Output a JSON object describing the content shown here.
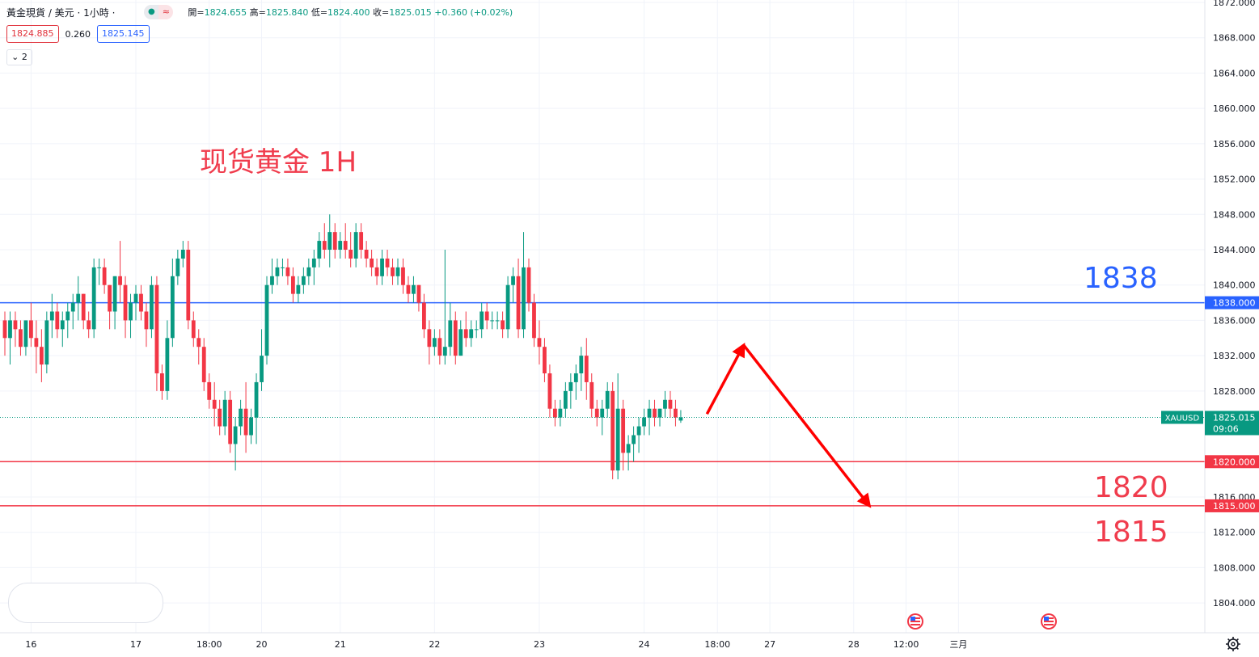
{
  "legend": {
    "symbol_title": "黃金現貨 / 美元 · 1小時 ·",
    "live_icon": "dot-icon",
    "approx_icon": "approx-icon",
    "ohlc": [
      {
        "label": "開=",
        "value": "1824.655"
      },
      {
        "label": "高=",
        "value": "1825.840"
      },
      {
        "label": "低=",
        "value": "1824.400"
      },
      {
        "label": "收=",
        "value": "1825.015"
      },
      {
        "label": "",
        "value": "+0.360 (+0.02%)"
      }
    ],
    "bid": "1824.885",
    "spread": "0.260",
    "ask": "1825.145",
    "indicators_toggle": "2"
  },
  "annotations": {
    "chart_label": "现货黄金 1H",
    "resistance_label": "1838",
    "support1_label": "1820",
    "support2_label": "1815"
  },
  "colors": {
    "up": "#089981",
    "down": "#f23645",
    "resistance": "#2962ff",
    "support": "#f23645",
    "arrow": "#ff0000",
    "annotation_red": "#f03c4d",
    "annotation_blue": "#2962ff"
  },
  "chart_data": {
    "type": "candlestick",
    "symbol": "XAUUSD",
    "timeframe": "1H",
    "y_range": [
      1802.0,
      1872.0
    ],
    "y_ticks": [
      "1872.000",
      "1868.000",
      "1864.000",
      "1860.000",
      "1856.000",
      "1852.000",
      "1848.000",
      "1844.000",
      "1840.000",
      "1836.000",
      "1832.000",
      "1828.000",
      "1816.000",
      "1812.000",
      "1808.000",
      "1804.000"
    ],
    "x_ticks": [
      {
        "label": "16",
        "t": 5
      },
      {
        "label": "17",
        "t": 25
      },
      {
        "label": "18:00",
        "t": 39
      },
      {
        "label": "20",
        "t": 49
      },
      {
        "label": "21",
        "t": 64
      },
      {
        "label": "22",
        "t": 82
      },
      {
        "label": "23",
        "t": 102
      },
      {
        "label": "24",
        "t": 122
      },
      {
        "label": "18:00",
        "t": 136
      },
      {
        "label": "27",
        "t": 146
      },
      {
        "label": "28",
        "t": 162
      },
      {
        "label": "12:00",
        "t": 172
      },
      {
        "label": "三月",
        "t": 182
      }
    ],
    "horizontal_lines": [
      {
        "value": 1838.0,
        "label": "1838.000",
        "color": "#2962ff"
      },
      {
        "value": 1820.0,
        "label": "1820.000",
        "color": "#f23645"
      },
      {
        "value": 1815.0,
        "label": "1815.000",
        "color": "#f23645"
      }
    ],
    "last_price": {
      "value": 1825.015,
      "label": "1825.015",
      "countdown": "09:06",
      "symbol_tag": "XAUUSD"
    },
    "forecast_path": [
      {
        "t": 134,
        "price": 1825.4
      },
      {
        "t": 141,
        "price": 1833.2
      },
      {
        "t": 165,
        "price": 1815.0
      }
    ],
    "ohlc": [
      [
        1836,
        1837,
        1832,
        1834
      ],
      [
        1834,
        1837,
        1831,
        1836
      ],
      [
        1836,
        1837,
        1833,
        1835
      ],
      [
        1835,
        1836,
        1832,
        1833
      ],
      [
        1833,
        1836,
        1832,
        1836
      ],
      [
        1836,
        1838,
        1833,
        1834
      ],
      [
        1834,
        1836,
        1830,
        1833
      ],
      [
        1833,
        1835,
        1829,
        1831
      ],
      [
        1831,
        1837,
        1830,
        1836
      ],
      [
        1836,
        1839,
        1834,
        1837
      ],
      [
        1837,
        1838,
        1834,
        1835
      ],
      [
        1835,
        1837,
        1833,
        1836
      ],
      [
        1836,
        1838,
        1834,
        1837
      ],
      [
        1837,
        1839,
        1835,
        1838
      ],
      [
        1838,
        1841,
        1836,
        1839
      ],
      [
        1839,
        1839,
        1835,
        1836
      ],
      [
        1836,
        1837,
        1834,
        1835
      ],
      [
        1835,
        1843,
        1834,
        1842
      ],
      [
        1842,
        1843,
        1840,
        1842
      ],
      [
        1842,
        1843,
        1839,
        1840
      ],
      [
        1840,
        1840,
        1835,
        1837
      ],
      [
        1837,
        1841,
        1835,
        1841
      ],
      [
        1841,
        1845,
        1838,
        1840
      ],
      [
        1840,
        1841,
        1834,
        1836
      ],
      [
        1836,
        1839,
        1834,
        1838
      ],
      [
        1838,
        1840,
        1836,
        1839
      ],
      [
        1839,
        1840,
        1836,
        1837
      ],
      [
        1837,
        1838,
        1833,
        1835
      ],
      [
        1835,
        1841,
        1834,
        1840
      ],
      [
        1840,
        1841,
        1828,
        1830
      ],
      [
        1830,
        1831,
        1827,
        1828
      ],
      [
        1828,
        1836,
        1827,
        1834
      ],
      [
        1834,
        1843,
        1833,
        1841
      ],
      [
        1841,
        1844,
        1840,
        1843
      ],
      [
        1843,
        1845,
        1842,
        1844
      ],
      [
        1844,
        1845,
        1835,
        1836
      ],
      [
        1836,
        1837,
        1833,
        1834
      ],
      [
        1834,
        1835,
        1831,
        1833
      ],
      [
        1833,
        1834,
        1828,
        1829
      ],
      [
        1829,
        1830,
        1826,
        1827
      ],
      [
        1827,
        1829,
        1824,
        1826
      ],
      [
        1826,
        1827,
        1823,
        1824
      ],
      [
        1824,
        1828,
        1823,
        1827
      ],
      [
        1827,
        1828,
        1821,
        1822
      ],
      [
        1822,
        1825,
        1819,
        1824
      ],
      [
        1824,
        1827,
        1823,
        1826
      ],
      [
        1826,
        1829,
        1821,
        1823
      ],
      [
        1823,
        1826,
        1822,
        1825
      ],
      [
        1825,
        1830,
        1822,
        1829
      ],
      [
        1829,
        1835,
        1828,
        1832
      ],
      [
        1832,
        1841,
        1831,
        1840
      ],
      [
        1840,
        1843,
        1839,
        1841
      ],
      [
        1841,
        1843,
        1840,
        1842
      ],
      [
        1842,
        1843,
        1841,
        1842
      ],
      [
        1842,
        1843,
        1840,
        1841
      ],
      [
        1841,
        1842,
        1838,
        1839
      ],
      [
        1839,
        1841,
        1838,
        1840
      ],
      [
        1840,
        1842,
        1839,
        1841
      ],
      [
        1841,
        1843,
        1840,
        1842
      ],
      [
        1842,
        1844,
        1840,
        1843
      ],
      [
        1843,
        1846,
        1842,
        1845
      ],
      [
        1845,
        1847,
        1843,
        1844
      ],
      [
        1844,
        1848,
        1842,
        1846
      ],
      [
        1846,
        1847,
        1843,
        1844
      ],
      [
        1844,
        1846,
        1843,
        1845
      ],
      [
        1845,
        1847,
        1843,
        1844
      ],
      [
        1844,
        1846,
        1842,
        1843
      ],
      [
        1843,
        1847,
        1842,
        1846
      ],
      [
        1846,
        1847,
        1843,
        1844
      ],
      [
        1844,
        1845,
        1842,
        1843
      ],
      [
        1843,
        1844,
        1841,
        1842
      ],
      [
        1842,
        1843,
        1840,
        1841
      ],
      [
        1841,
        1844,
        1840,
        1843
      ],
      [
        1843,
        1844,
        1841,
        1842
      ],
      [
        1842,
        1843,
        1840,
        1841
      ],
      [
        1841,
        1843,
        1840,
        1842
      ],
      [
        1842,
        1843,
        1839,
        1840
      ],
      [
        1840,
        1841,
        1838,
        1839
      ],
      [
        1839,
        1841,
        1838,
        1840
      ],
      [
        1840,
        1840,
        1837,
        1838
      ],
      [
        1838,
        1839,
        1834,
        1835
      ],
      [
        1835,
        1836,
        1831,
        1833
      ],
      [
        1833,
        1835,
        1832,
        1834
      ],
      [
        1834,
        1835,
        1831,
        1832
      ],
      [
        1832,
        1844,
        1831,
        1833
      ],
      [
        1833,
        1838,
        1832,
        1836
      ],
      [
        1836,
        1837,
        1831,
        1832
      ],
      [
        1832,
        1836,
        1832,
        1835
      ],
      [
        1835,
        1837,
        1833,
        1834
      ],
      [
        1834,
        1836,
        1833,
        1835
      ],
      [
        1835,
        1836,
        1834,
        1835
      ],
      [
        1835,
        1838,
        1834,
        1837
      ],
      [
        1837,
        1838,
        1835,
        1836
      ],
      [
        1836,
        1837,
        1835,
        1836
      ],
      [
        1836,
        1837,
        1835,
        1836
      ],
      [
        1836,
        1837,
        1834,
        1835
      ],
      [
        1835,
        1841,
        1834,
        1840
      ],
      [
        1840,
        1842,
        1838,
        1841
      ],
      [
        1841,
        1843,
        1834,
        1835
      ],
      [
        1835,
        1846,
        1834,
        1842
      ],
      [
        1842,
        1843,
        1837,
        1838
      ],
      [
        1838,
        1839,
        1833,
        1834
      ],
      [
        1834,
        1836,
        1831,
        1833
      ],
      [
        1833,
        1834,
        1829,
        1830
      ],
      [
        1830,
        1831,
        1825,
        1826
      ],
      [
        1826,
        1827,
        1824,
        1825
      ],
      [
        1825,
        1827,
        1824,
        1826
      ],
      [
        1826,
        1829,
        1825,
        1828
      ],
      [
        1828,
        1830,
        1826,
        1829
      ],
      [
        1829,
        1831,
        1827,
        1830
      ],
      [
        1830,
        1833,
        1828,
        1832
      ],
      [
        1832,
        1834,
        1827,
        1829
      ],
      [
        1829,
        1830,
        1825,
        1826
      ],
      [
        1826,
        1827,
        1824,
        1825
      ],
      [
        1825,
        1827,
        1823,
        1826
      ],
      [
        1826,
        1829,
        1825,
        1828
      ],
      [
        1828,
        1829,
        1818,
        1819
      ],
      [
        1819,
        1830,
        1818,
        1826
      ],
      [
        1826,
        1827,
        1819,
        1821
      ],
      [
        1821,
        1823,
        1819,
        1822
      ],
      [
        1822,
        1824,
        1820,
        1823
      ],
      [
        1823,
        1825,
        1821,
        1824
      ],
      [
        1824,
        1826,
        1823,
        1825
      ],
      [
        1825,
        1827,
        1823,
        1826
      ],
      [
        1826,
        1827,
        1824,
        1825
      ],
      [
        1825,
        1826,
        1824,
        1826
      ],
      [
        1826,
        1828,
        1825,
        1827
      ],
      [
        1827,
        1828,
        1825,
        1826
      ],
      [
        1826,
        1827,
        1824,
        1825
      ],
      [
        1824.655,
        1825.84,
        1824.4,
        1825.015
      ]
    ]
  }
}
